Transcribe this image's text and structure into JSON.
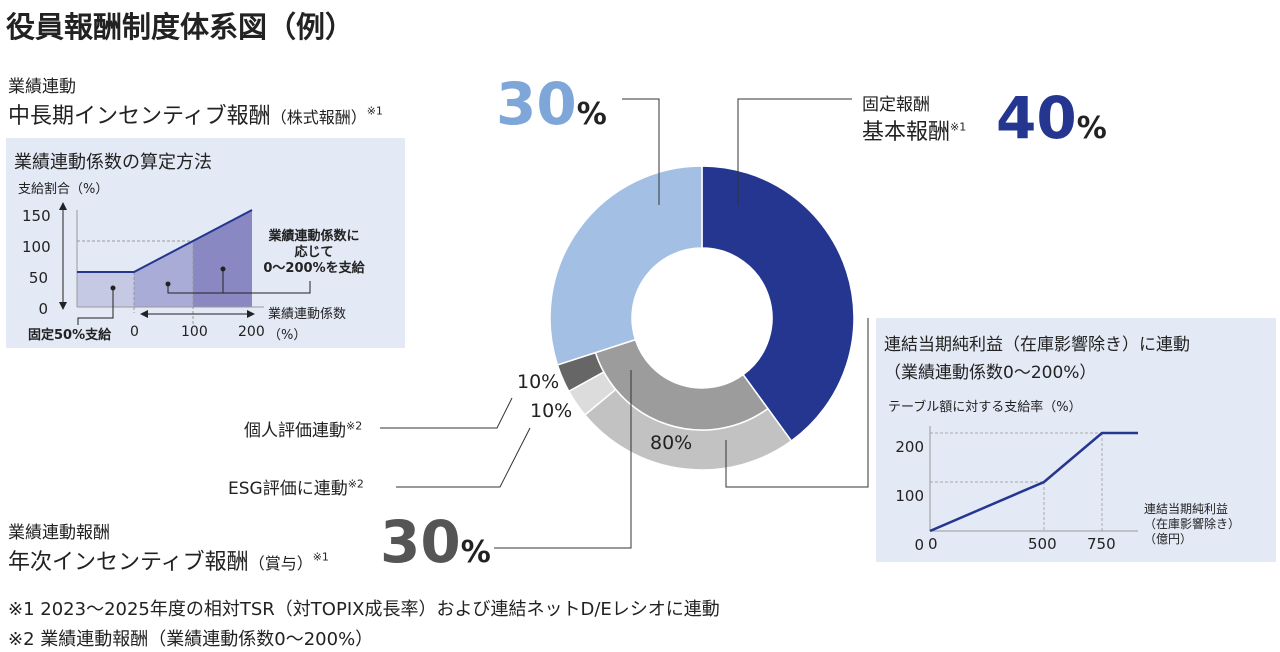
{
  "title": "役員報酬制度体系図（例）",
  "ltip": {
    "category": "業績連動",
    "name": "中長期インセンティブ報酬",
    "sub": "（株式報酬）",
    "note": "※1",
    "pct": "30",
    "unit": "%",
    "color": "#7fa6d8"
  },
  "base": {
    "category": "固定報酬",
    "name": "基本報酬",
    "note": "※1",
    "pct": "40",
    "unit": "%",
    "color": "#24368f"
  },
  "sti": {
    "category": "業績連動報酬",
    "name": "年次インセンティブ報酬",
    "sub": "（賞与）",
    "note": "※1",
    "pct": "30",
    "unit": "%"
  },
  "sti_parts": {
    "individual": {
      "label": "個人評価連動",
      "note": "※2",
      "pct": "10%"
    },
    "esg": {
      "label": "ESG評価に連動",
      "note": "※2",
      "pct": "10%"
    },
    "profit": {
      "pct": "80%"
    }
  },
  "left_box": {
    "title": "業績連動係数の算定方法",
    "ylabel": "支給割合（%）",
    "yticks": [
      "150",
      "100",
      "50",
      "0"
    ],
    "xticks": [
      "0",
      "100",
      "200"
    ],
    "xlabel": "業績連動係数",
    "xunit": "（%）",
    "fixed": "固定50%支給",
    "annot": [
      "業績連動係数に",
      "応じて",
      "0～200%を支給"
    ]
  },
  "right_box": {
    "title": "連結当期純利益（在庫影響除き）に連動",
    "subtitle": "（業績連動係数0～200%）",
    "ylabel": "テーブル額に対する支給率（%）",
    "yticks": [
      "200",
      "100",
      "0"
    ],
    "xticks": [
      "0",
      "500",
      "750"
    ],
    "xlabel": [
      "連結当期純利益",
      "（在庫影響除き）",
      "（億円）"
    ]
  },
  "chart_data": [
    {
      "type": "pie",
      "values": [
        40,
        30,
        30
      ],
      "labels": [
        "基本報酬",
        "年次インセンティブ報酬",
        "中長期インセンティブ報酬"
      ],
      "sub_breakdown": {
        "年次インセンティブ報酬": {
          "連結当期純利益": 80,
          "ESG評価に連動": 10,
          "個人評価連動": 10
        }
      }
    },
    {
      "type": "line",
      "x": [
        -50,
        0,
        100,
        200
      ],
      "y": [
        50,
        50,
        100,
        150
      ],
      "xlabel": "業績連動係数（%）",
      "ylabel": "支給割合（%）"
    },
    {
      "type": "line",
      "x": [
        0,
        500,
        750,
        820
      ],
      "y": [
        0,
        100,
        200,
        200
      ],
      "xlabel": "連結当期純利益（在庫影響除き）（億円）",
      "ylabel": "テーブル額に対する支給率（%）"
    }
  ],
  "footnotes": [
    "※1 2023～2025年度の相対TSR（対TOPIX成長率）および連結ネットD/Eレシオに連動",
    "※2 業績連動報酬（業績連動係数0～200%）"
  ]
}
